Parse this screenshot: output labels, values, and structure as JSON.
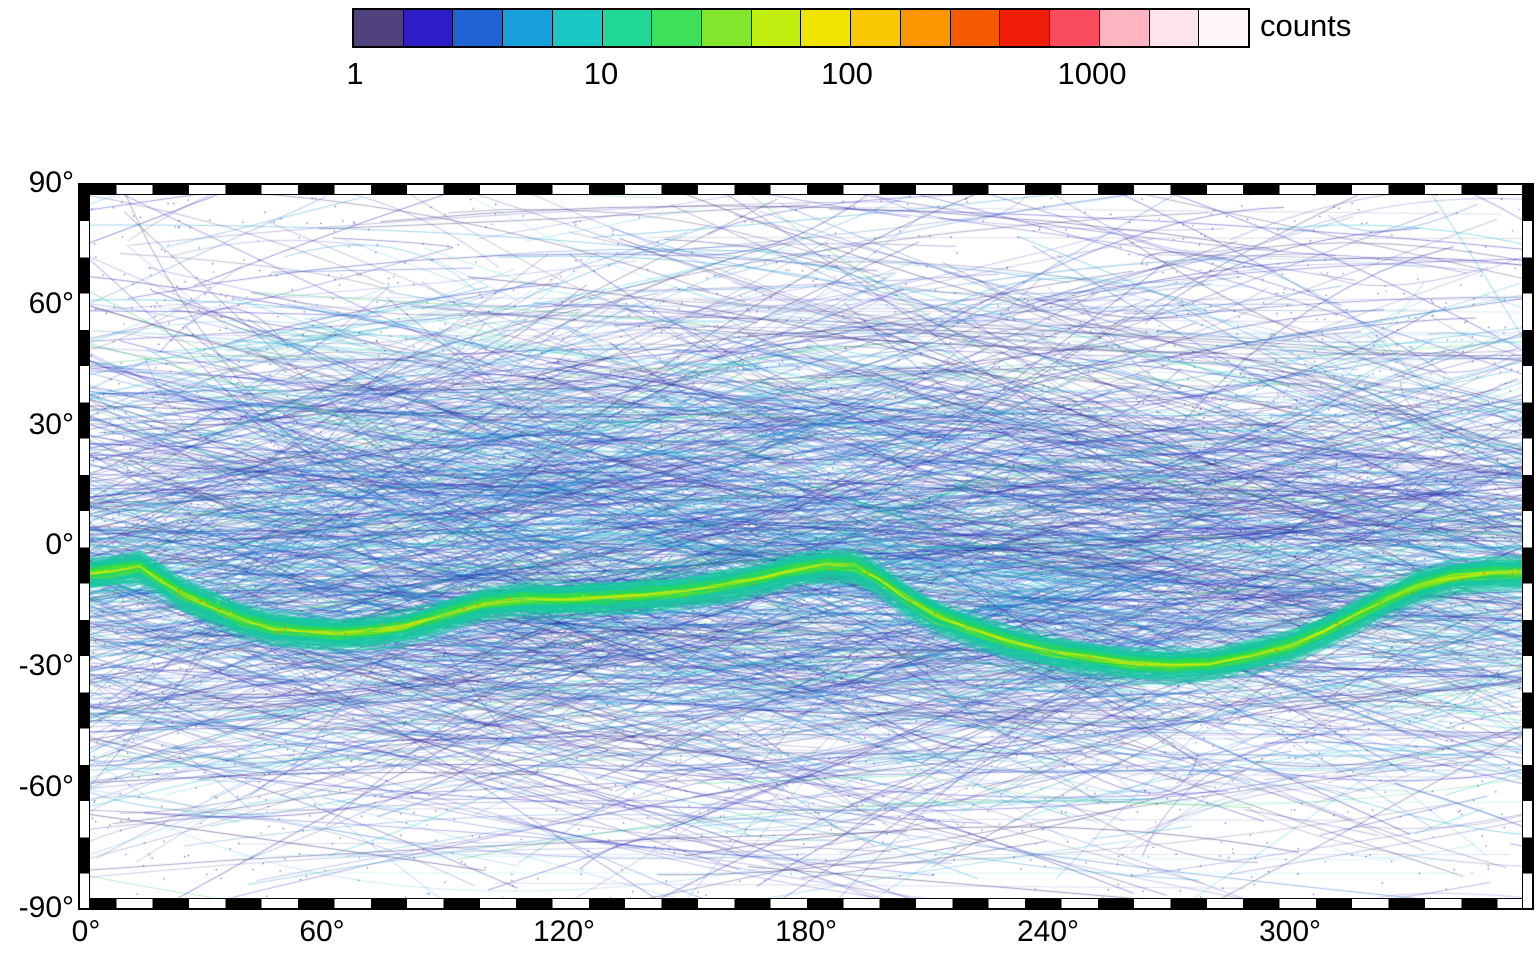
{
  "chart_data": {
    "type": "heatmap",
    "title": "",
    "description": "All-sky exposure map: counts of overlapping scan tracks on a 360x180 degree longitude/latitude grid, log color scale, with a bright high-count sinuous band near the ecliptic south of the equator",
    "colorbar": {
      "label": "counts",
      "scale": "log",
      "ticks": [
        "1",
        "10",
        "100",
        "1000"
      ],
      "tick_values": [
        1,
        10,
        100,
        1000
      ],
      "range": [
        1,
        5000
      ],
      "colors": [
        "#50427d",
        "#2d1ec8",
        "#1f63d4",
        "#18a0dc",
        "#19c8c3",
        "#1fd896",
        "#3ce05a",
        "#82e62d",
        "#c3ee11",
        "#f0e400",
        "#fac800",
        "#fa9600",
        "#f55a00",
        "#f01e0a",
        "#fa4b5f",
        "#ffb4c3",
        "#ffe4ec",
        "#fff7fa"
      ]
    },
    "x_axis": {
      "label": "",
      "range": [
        0,
        360
      ],
      "ticks": [
        "0°",
        "60°",
        "120°",
        "180°",
        "240°",
        "300°"
      ],
      "tick_values": [
        0,
        60,
        120,
        180,
        240,
        300
      ]
    },
    "y_axis": {
      "label": "",
      "range": [
        -90,
        90
      ],
      "ticks": [
        "90°",
        "60°",
        "30°",
        "0°",
        "-30°",
        "-60°",
        "-90°"
      ],
      "tick_values": [
        90,
        60,
        30,
        0,
        -30,
        -60,
        -90
      ]
    },
    "features": {
      "background": "sparse low-count (dark purple/blue) criss-crossing scan tracks over white, densest cyan tangle between -50 and +50 degrees latitude, nearly empty at the poles",
      "bright_band": {
        "description": "high-count (green/yellow, ~100-300 counts) sinuous band of piled-up scan paths",
        "lon": [
          0,
          8,
          15,
          20,
          26,
          33,
          40,
          48,
          56,
          64,
          72,
          80,
          90,
          100,
          110,
          120,
          130,
          140,
          150,
          160,
          170,
          178,
          185,
          192,
          198,
          205,
          212,
          220,
          230,
          240,
          250,
          260,
          270,
          280,
          290,
          300,
          308,
          316,
          324,
          332,
          340,
          350,
          360
        ],
        "lat": [
          -7,
          -6,
          -5,
          -8,
          -12,
          -15,
          -18,
          -20,
          -21,
          -21.5,
          -21,
          -20,
          -17,
          -14,
          -13,
          -13,
          -12.5,
          -12,
          -11,
          -9.5,
          -7.5,
          -5.5,
          -4.5,
          -5,
          -8,
          -13,
          -17,
          -20,
          -23.5,
          -26,
          -27.5,
          -29,
          -29.5,
          -29,
          -27,
          -24.5,
          -21,
          -17,
          -13,
          -9.5,
          -7.5,
          -6.5,
          -6.5
        ]
      }
    },
    "render": {
      "n_tracks": 1900,
      "n_hstreaks": 50,
      "n_speckle_attempts": 9000,
      "band_passes": 150,
      "fringe_passes": 35,
      "n_flecks": 60,
      "track_colors": [
        [
          "#2d2473",
          0.22
        ],
        [
          "#1e1eaa",
          0.26
        ],
        [
          "#2828c8",
          0.16
        ],
        [
          "#1964c8",
          0.14
        ],
        [
          "#19a0d2",
          0.12
        ],
        [
          "#19c3cd",
          0.07
        ],
        [
          "#23c85a",
          0.03
        ]
      ],
      "blob_colors": [
        [
          "#1996d2",
          0.3
        ],
        [
          "#19b9cd",
          0.35
        ],
        [
          "#1e50c8",
          0.2
        ],
        [
          "#28dc96",
          0.08
        ],
        [
          "#2d2d96",
          0.07
        ]
      ],
      "speckle_colors": [
        [
          "#3c2d73",
          0.45
        ],
        [
          "#28288c",
          0.3
        ],
        [
          "#1e1eb4",
          0.15
        ],
        [
          "#1987c8",
          0.1
        ]
      ],
      "band_colors": [
        [
          "#2ddc46",
          0.4
        ],
        [
          "#4be332",
          0.3
        ],
        [
          "#19cd78",
          0.2
        ],
        [
          "#8ce61e",
          0.1
        ]
      ],
      "band_core_colors": [
        [
          "#c3ee11",
          0.35
        ],
        [
          "#f0e400",
          0.35
        ],
        [
          "#9be00f",
          0.2
        ],
        [
          "#fac800",
          0.1
        ]
      ],
      "fleck_colors": [
        [
          "#fa9600",
          0.5
        ],
        [
          "#f55a00",
          0.3
        ],
        [
          "#f0e400",
          0.2
        ]
      ],
      "fringe_color": "#19b4c8",
      "equator_color": "#19c3cd",
      "blobs": [
        {
          "lon": 165,
          "lat": 8,
          "slon": 55,
          "slat": 30,
          "n": 420
        },
        {
          "lon": 345,
          "lat": -2,
          "slon": 26,
          "slat": 24,
          "n": 260
        },
        {
          "lon": 30,
          "lat": -10,
          "slon": 38,
          "slat": 28,
          "n": 260
        },
        {
          "lon": 235,
          "lat": -18,
          "slon": 40,
          "slat": 26,
          "n": 300
        },
        {
          "lon": 90,
          "lat": 25,
          "slon": 30,
          "slat": 22,
          "n": 180
        }
      ]
    }
  }
}
